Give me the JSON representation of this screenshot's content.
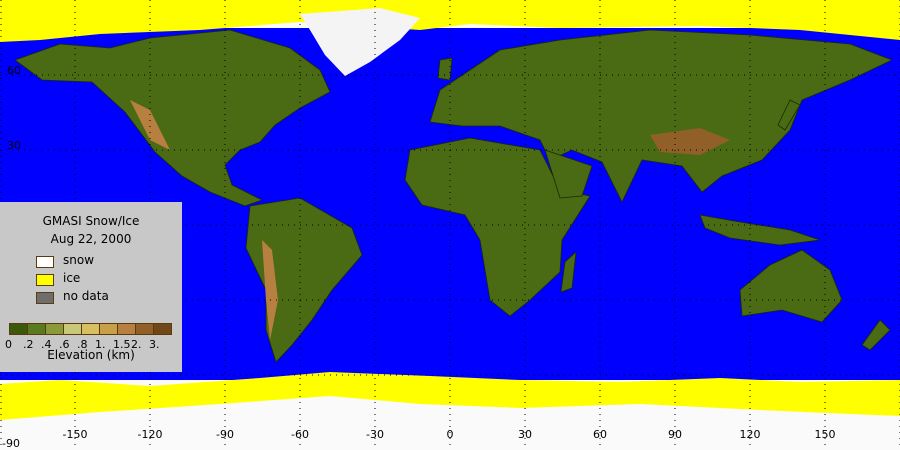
{
  "legend": {
    "title": "GMASI Snow/Ice",
    "date": "Aug 22, 2000",
    "items": [
      {
        "label": "snow",
        "color": "#ffffff"
      },
      {
        "label": "ice",
        "color": "#ffff00"
      },
      {
        "label": "no data",
        "color": "#6e6e6e"
      }
    ],
    "colorbar": {
      "colors": [
        "#3a5a0a",
        "#5a7a20",
        "#8a9a38",
        "#c8c878",
        "#d8c060",
        "#c8a048",
        "#b88040",
        "#906028",
        "#704818"
      ],
      "tick_labels": [
        "0",
        ".2",
        ".4",
        ".6",
        ".8",
        "1.",
        "1.5",
        "2.",
        "3."
      ],
      "label": "Elevation (km)"
    }
  },
  "map": {
    "ocean_color": "#0000ff",
    "longitude_labels": [
      "-150",
      "-120",
      "-90",
      "-60",
      "-30",
      "0",
      "30",
      "60",
      "90",
      "120",
      "150"
    ],
    "latitude_labels": [
      "60",
      "30",
      "-90"
    ]
  }
}
